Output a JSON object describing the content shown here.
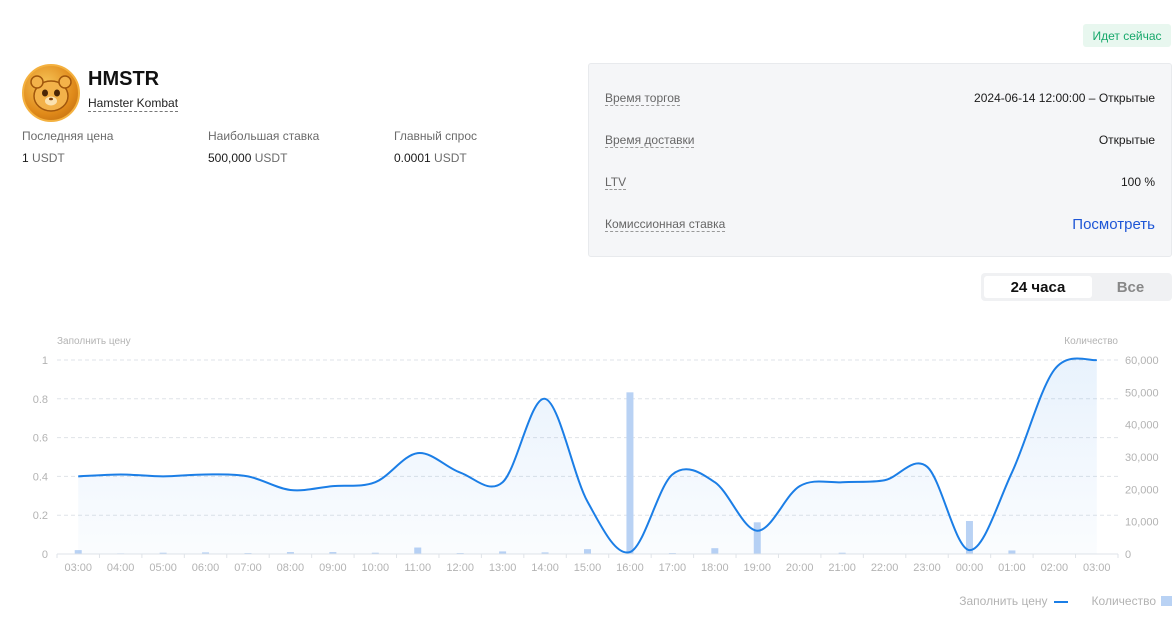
{
  "status": {
    "label": "Идет сейчас"
  },
  "token": {
    "symbol": "HMSTR",
    "name": "Hamster Kombat",
    "logo_icon": "hamster-logo-icon"
  },
  "stats": [
    {
      "label": "Последняя цена",
      "value": "1",
      "unit": "USDT"
    },
    {
      "label": "Наибольшая ставка",
      "value": "500,000",
      "unit": "USDT"
    },
    {
      "label": "Главный спрос",
      "value": "0.0001",
      "unit": "USDT"
    }
  ],
  "info": {
    "trade_time_label": "Время торгов",
    "trade_time_value": "2024-06-14 12:00:00 – Открытые",
    "delivery_time_label": "Время доставки",
    "delivery_time_value": "Открытые",
    "ltv_label": "LTV",
    "ltv_value": "100 %",
    "fee_label": "Комиссионная ставка",
    "fee_link": "Посмотреть"
  },
  "range": {
    "options": [
      "24 часа",
      "Все"
    ],
    "selected": "24 часа"
  },
  "colors": {
    "line": "#1b7ee6",
    "bar": "#b9d2f4",
    "accent_link": "#1e56d6",
    "status_green": "#17a86b"
  },
  "chart_data": {
    "type": "line",
    "left_axis_title": "Заполнить цену",
    "right_axis_title": "Количество",
    "categories": [
      "03:00",
      "04:00",
      "05:00",
      "06:00",
      "07:00",
      "08:00",
      "09:00",
      "10:00",
      "11:00",
      "12:00",
      "13:00",
      "14:00",
      "15:00",
      "16:00",
      "17:00",
      "18:00",
      "19:00",
      "20:00",
      "21:00",
      "22:00",
      "23:00",
      "00:00",
      "01:00",
      "02:00",
      "03:00"
    ],
    "ylim_left": [
      0,
      1
    ],
    "yticks_left": [
      "0",
      "0.2",
      "0.4",
      "0.6",
      "0.8",
      "1"
    ],
    "ylim_right": [
      0,
      60000
    ],
    "yticks_right": [
      "0",
      "10,000",
      "20,000",
      "30,000",
      "40,000",
      "50,000",
      "60,000"
    ],
    "grid": true,
    "legend_position": "bottom-right",
    "series": [
      {
        "name": "Заполнить цену",
        "type": "line",
        "axis": "left",
        "values": [
          0.4,
          0.41,
          0.4,
          0.41,
          0.4,
          0.33,
          0.35,
          0.37,
          0.52,
          0.42,
          0.37,
          0.8,
          0.27,
          0.01,
          0.41,
          0.37,
          0.12,
          0.35,
          0.37,
          0.38,
          0.45,
          0.02,
          0.42,
          0.95,
          1.0
        ]
      },
      {
        "name": "Количество",
        "type": "bar",
        "axis": "right",
        "values": [
          1200,
          200,
          400,
          500,
          300,
          600,
          600,
          400,
          2000,
          300,
          800,
          500,
          1500,
          50000,
          300,
          1800,
          9800,
          100,
          400,
          100,
          100,
          10200,
          1100,
          0,
          0
        ]
      }
    ]
  }
}
